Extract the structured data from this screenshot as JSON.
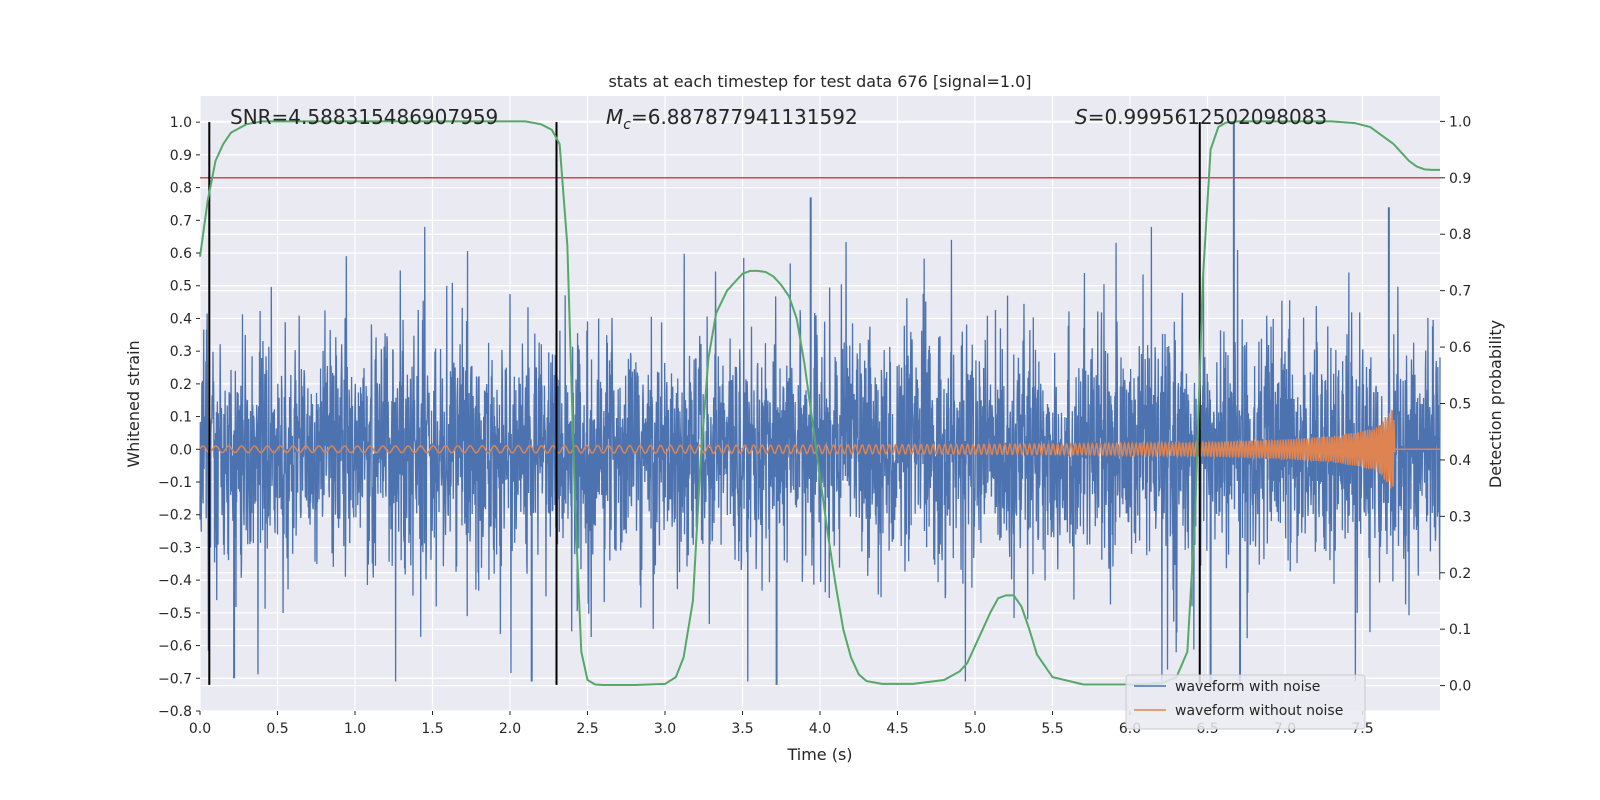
{
  "chart_data": {
    "type": "line",
    "title": "stats at each timestep for test data 676 [signal=1.0]",
    "xlabel": "Time (s)",
    "ylabel": "Whitened strain",
    "y2label": "Detection probability",
    "xlim": [
      0.0,
      8.0
    ],
    "ylim": [
      -0.8,
      1.08
    ],
    "y2lim": [
      -0.045,
      1.045
    ],
    "xticks": [
      "0.0",
      "0.5",
      "1.0",
      "1.5",
      "2.0",
      "2.5",
      "3.0",
      "3.5",
      "4.0",
      "4.5",
      "5.0",
      "5.5",
      "6.0",
      "6.5",
      "7.0",
      "7.5"
    ],
    "xtick_values": [
      0.0,
      0.5,
      1.0,
      1.5,
      2.0,
      2.5,
      3.0,
      3.5,
      4.0,
      4.5,
      5.0,
      5.5,
      6.0,
      6.5,
      7.0,
      7.5
    ],
    "yticks": [
      "1.0",
      "0.9",
      "0.8",
      "0.7",
      "0.6",
      "0.5",
      "0.4",
      "0.3",
      "0.2",
      "0.1",
      "0.0",
      "−0.1",
      "−0.2",
      "−0.3",
      "−0.4",
      "−0.5",
      "−0.6",
      "−0.7",
      "−0.8"
    ],
    "ytick_values": [
      1.0,
      0.9,
      0.8,
      0.7,
      0.6,
      0.5,
      0.4,
      0.3,
      0.2,
      0.1,
      0.0,
      -0.1,
      -0.2,
      -0.3,
      -0.4,
      -0.5,
      -0.6,
      -0.7,
      -0.8
    ],
    "y2ticks": [
      "1.0",
      "0.9",
      "0.8",
      "0.7",
      "0.6",
      "0.5",
      "0.4",
      "0.3",
      "0.2",
      "0.1",
      "0.0"
    ],
    "y2tick_values": [
      1.0,
      0.9,
      0.8,
      0.7,
      0.6,
      0.5,
      0.4,
      0.3,
      0.2,
      0.1,
      0.0
    ],
    "grid": true,
    "legend_position": "bottom-right",
    "annotations": {
      "snr": "SNR=4.588315486907959",
      "mc_symbol": "M",
      "mc_sub": "c",
      "mc_value": "=6.887877941131592",
      "s_symbol": "S",
      "s_value": "=0.9995612502098083"
    },
    "series": [
      {
        "name": "waveform with noise",
        "color": "#4c72b0",
        "axis": "left",
        "kind": "noise",
        "x_range": [
          0.0,
          8.0
        ],
        "amplitude_range": [
          -0.73,
          1.0
        ],
        "typical_band": [
          -0.45,
          0.5
        ],
        "spikes": [
          {
            "t": 6.67,
            "y": 1.0
          },
          {
            "t": 3.94,
            "y": 0.77
          },
          {
            "t": 7.67,
            "y": 0.74
          },
          {
            "t": 6.71,
            "y": -0.73
          },
          {
            "t": 2.14,
            "y": -0.71
          },
          {
            "t": 0.22,
            "y": -0.7
          },
          {
            "t": 3.72,
            "y": -0.72
          },
          {
            "t": 6.52,
            "y": -0.72
          }
        ]
      },
      {
        "name": "waveform without noise",
        "color": "#dd8452",
        "axis": "left",
        "kind": "chirp",
        "x": [
          0.0,
          1.0,
          2.0,
          3.0,
          4.0,
          5.0,
          6.0,
          6.5,
          7.0,
          7.3,
          7.5,
          7.6,
          7.7,
          7.71,
          8.0
        ],
        "envelope": [
          0.01,
          0.01,
          0.011,
          0.012,
          0.013,
          0.015,
          0.018,
          0.022,
          0.03,
          0.04,
          0.055,
          0.07,
          0.13,
          0.0,
          0.0
        ]
      },
      {
        "name": "detection probability",
        "color": "#55a868",
        "axis": "right",
        "kind": "line",
        "x": [
          0.0,
          0.05,
          0.1,
          0.15,
          0.2,
          0.3,
          0.4,
          0.6,
          1.0,
          1.5,
          2.0,
          2.1,
          2.2,
          2.27,
          2.32,
          2.37,
          2.42,
          2.46,
          2.5,
          2.55,
          2.6,
          2.8,
          3.0,
          3.07,
          3.12,
          3.18,
          3.23,
          3.28,
          3.33,
          3.4,
          3.5,
          3.55,
          3.6,
          3.65,
          3.7,
          3.75,
          3.8,
          3.85,
          3.9,
          3.95,
          4.0,
          4.05,
          4.1,
          4.15,
          4.2,
          4.25,
          4.3,
          4.4,
          4.6,
          4.8,
          4.9,
          4.95,
          5.0,
          5.05,
          5.1,
          5.15,
          5.2,
          5.25,
          5.3,
          5.35,
          5.4,
          5.5,
          5.7,
          6.0,
          6.2,
          6.3,
          6.37,
          6.42,
          6.47,
          6.52,
          6.57,
          6.62,
          6.7,
          7.0,
          7.3,
          7.45,
          7.55,
          7.6,
          7.65,
          7.7,
          7.75,
          7.8,
          7.85,
          7.9,
          7.95,
          8.0
        ],
        "values": [
          0.76,
          0.86,
          0.93,
          0.96,
          0.98,
          0.995,
          1.0,
          1.0,
          1.0,
          1.0,
          1.0,
          1.0,
          0.995,
          0.985,
          0.96,
          0.78,
          0.32,
          0.06,
          0.01,
          0.002,
          0.001,
          0.001,
          0.003,
          0.015,
          0.05,
          0.15,
          0.4,
          0.58,
          0.66,
          0.7,
          0.73,
          0.735,
          0.735,
          0.733,
          0.725,
          0.71,
          0.69,
          0.65,
          0.57,
          0.47,
          0.37,
          0.27,
          0.18,
          0.1,
          0.05,
          0.02,
          0.008,
          0.003,
          0.003,
          0.01,
          0.025,
          0.04,
          0.07,
          0.1,
          0.13,
          0.155,
          0.16,
          0.16,
          0.14,
          0.1,
          0.055,
          0.015,
          0.002,
          0.002,
          0.004,
          0.015,
          0.06,
          0.3,
          0.72,
          0.95,
          0.99,
          0.998,
          1.0,
          1.0,
          1.0,
          0.997,
          0.99,
          0.98,
          0.97,
          0.96,
          0.945,
          0.93,
          0.92,
          0.915,
          0.914,
          0.914
        ]
      }
    ],
    "threshold_right": 0.9,
    "threshold_color": "#c44e52",
    "vlines": [
      0.06,
      2.3,
      6.45
    ],
    "vline_range": [
      -0.72,
      1.0
    ],
    "vline_color": "#000000"
  }
}
